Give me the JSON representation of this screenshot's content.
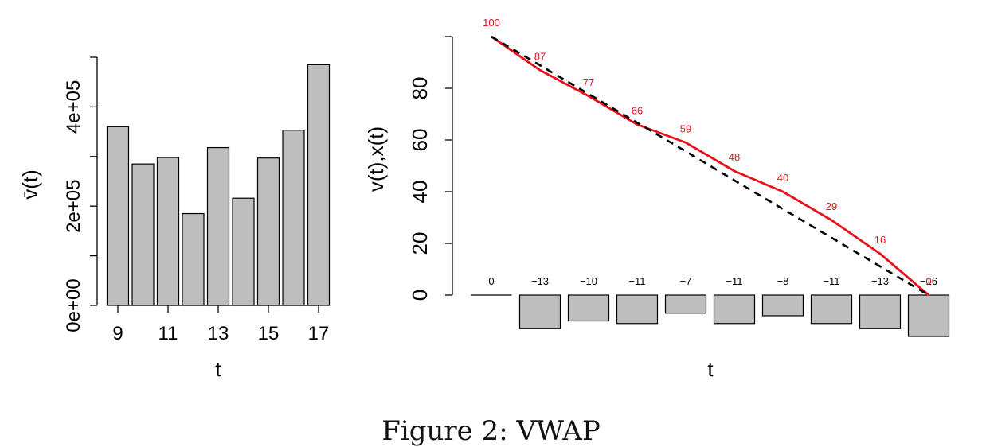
{
  "caption": "Figure 2: VWAP",
  "chart_data": [
    {
      "type": "bar",
      "xlabel": "t",
      "ylabel": "v̄(t)",
      "categories": [
        9,
        10,
        11,
        12,
        13,
        14,
        15,
        16,
        17
      ],
      "x_tick_labels": [
        "9",
        "11",
        "13",
        "15",
        "17"
      ],
      "x_ticks": [
        9,
        11,
        13,
        15,
        17
      ],
      "values": [
        360000,
        285000,
        298000,
        185000,
        318000,
        216000,
        297000,
        353000,
        485000
      ],
      "y_ticks": [
        0,
        100000,
        200000,
        300000,
        400000,
        500000
      ],
      "y_tick_labels": [
        "0e+00",
        "",
        "2e+05",
        "",
        "4e+05",
        ""
      ],
      "ylim": [
        0,
        500000
      ],
      "colors": {
        "bar_fill": "#bebebe",
        "bar_stroke": "#000000"
      }
    },
    {
      "type": "line",
      "xlabel": "t",
      "ylabel": "v(t),x(t)",
      "x": [
        0,
        1,
        2,
        3,
        4,
        5,
        6,
        7,
        8,
        9
      ],
      "series": [
        {
          "values": [
            100,
            87,
            77,
            66,
            59,
            48,
            40,
            29,
            16,
            0
          ],
          "color": "#e8101a",
          "style": "solid"
        },
        {
          "values": [
            100,
            88.9,
            77.8,
            66.7,
            55.6,
            44.4,
            33.3,
            22.2,
            11.1,
            0
          ],
          "color": "#000000",
          "style": "dashed"
        }
      ],
      "point_labels": [
        "100",
        "87",
        "77",
        "66",
        "59",
        "48",
        "40",
        "29",
        "16",
        "0"
      ],
      "diff_bars": {
        "values": [
          0,
          -13,
          -10,
          -11,
          -7,
          -11,
          -8,
          -11,
          -13,
          -16
        ],
        "labels": [
          "0",
          "−13",
          "−10",
          "−11",
          "−7",
          "−11",
          "−8",
          "−11",
          "−13",
          "−16"
        ],
        "fill": "#bebebe",
        "stroke": "#000000"
      },
      "y_ticks": [
        0,
        20,
        40,
        60,
        80
      ],
      "y_tick_labels": [
        "0",
        "20",
        "40",
        "60",
        "80"
      ],
      "ylim": [
        0,
        100
      ]
    }
  ]
}
